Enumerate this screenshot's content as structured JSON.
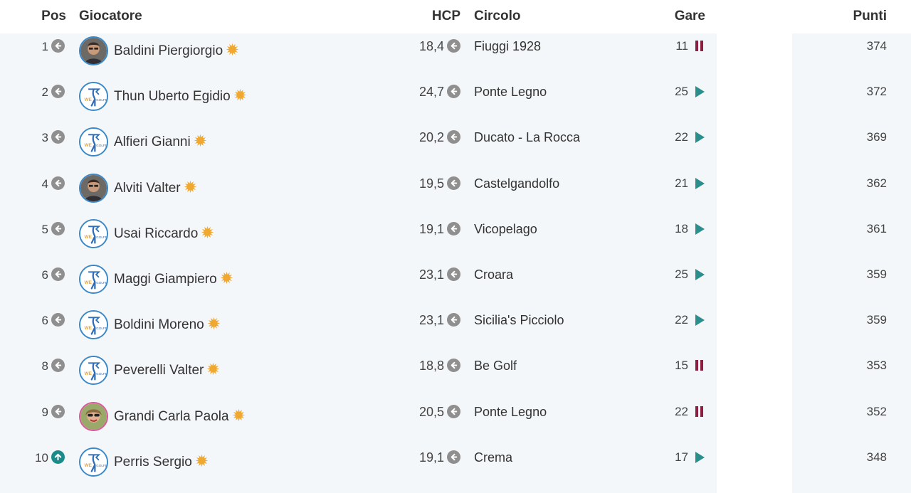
{
  "headers": {
    "pos": "Pos",
    "player": "Giocatore",
    "hcp": "HCP",
    "club": "Circolo",
    "races": "Gare",
    "points": "Punti"
  },
  "colors": {
    "row_bg": "#f4f7f9",
    "arrow_gray": "#8f8f8f",
    "arrow_up_teal": "#1b8a8a",
    "play_teal": "#2a8f8c",
    "pause_maroon": "#8b1e3f",
    "star_gold": "#f0a830",
    "avatar_border": "#3a88c8"
  },
  "rows": [
    {
      "pos": "1",
      "trend_icon": "arrow-left-icon",
      "avatar": "photo",
      "name": "Baldini Piergiorgio",
      "hcp": "18,4",
      "club": "Fiuggi 1928",
      "races": "11",
      "status_icon": "pause-icon",
      "points": "374"
    },
    {
      "pos": "2",
      "trend_icon": "arrow-left-icon",
      "avatar": "logo",
      "name": "Thun Uberto Egidio",
      "hcp": "24,7",
      "club": "Ponte Legno",
      "races": "25",
      "status_icon": "play-icon",
      "points": "372"
    },
    {
      "pos": "3",
      "trend_icon": "arrow-left-icon",
      "avatar": "logo",
      "name": "Alfieri Gianni",
      "hcp": "20,2",
      "club": "Ducato - La Rocca",
      "races": "22",
      "status_icon": "play-icon",
      "points": "369"
    },
    {
      "pos": "4",
      "trend_icon": "arrow-left-icon",
      "avatar": "photo",
      "name": "Alviti Valter",
      "hcp": "19,5",
      "club": "Castelgandolfo",
      "races": "21",
      "status_icon": "play-icon",
      "points": "362"
    },
    {
      "pos": "5",
      "trend_icon": "arrow-left-icon",
      "avatar": "logo",
      "name": "Usai Riccardo",
      "hcp": "19,1",
      "club": "Vicopelago",
      "races": "18",
      "status_icon": "play-icon",
      "points": "361"
    },
    {
      "pos": "6",
      "trend_icon": "arrow-left-icon",
      "avatar": "logo",
      "name": "Maggi Giampiero",
      "hcp": "23,1",
      "club": "Croara",
      "races": "25",
      "status_icon": "play-icon",
      "points": "359"
    },
    {
      "pos": "6",
      "trend_icon": "arrow-left-icon",
      "avatar": "logo",
      "name": "Boldini Moreno",
      "hcp": "23,1",
      "club": "Sicilia's Picciolo",
      "races": "22",
      "status_icon": "play-icon",
      "points": "359"
    },
    {
      "pos": "8",
      "trend_icon": "arrow-left-icon",
      "avatar": "logo",
      "name": "Peverelli Valter",
      "hcp": "18,8",
      "club": "Be Golf",
      "races": "15",
      "status_icon": "pause-icon",
      "points": "353"
    },
    {
      "pos": "9",
      "trend_icon": "arrow-left-icon",
      "avatar": "photo-pink",
      "name": "Grandi Carla Paola",
      "hcp": "20,5",
      "club": "Ponte Legno",
      "races": "22",
      "status_icon": "pause-icon",
      "points": "352"
    },
    {
      "pos": "10",
      "trend_icon": "arrow-up-icon",
      "avatar": "logo",
      "name": "Perris Sergio",
      "hcp": "19,1",
      "club": "Crema",
      "races": "17",
      "status_icon": "play-icon",
      "points": "348"
    }
  ]
}
